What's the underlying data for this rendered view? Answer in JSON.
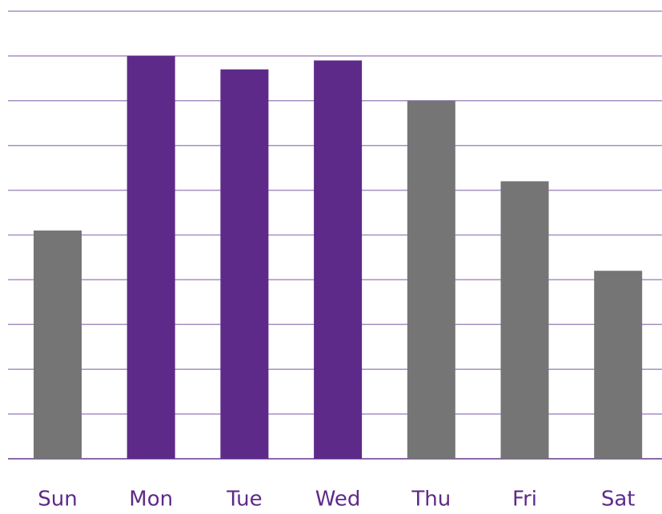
{
  "chart_data": {
    "type": "bar",
    "categories": [
      "Sun",
      "Mon",
      "Tue",
      "Wed",
      "Thu",
      "Fri",
      "Sat"
    ],
    "values": [
      5.1,
      9.0,
      8.7,
      8.9,
      8.0,
      6.2,
      4.2
    ],
    "colors": [
      "#757575",
      "#5e2a8a",
      "#5e2a8a",
      "#5e2a8a",
      "#757575",
      "#757575",
      "#757575"
    ],
    "ylim": [
      0,
      10
    ],
    "yticks": [
      0,
      1,
      2,
      3,
      4,
      5,
      6,
      7,
      8,
      9,
      10
    ],
    "grid": true
  }
}
